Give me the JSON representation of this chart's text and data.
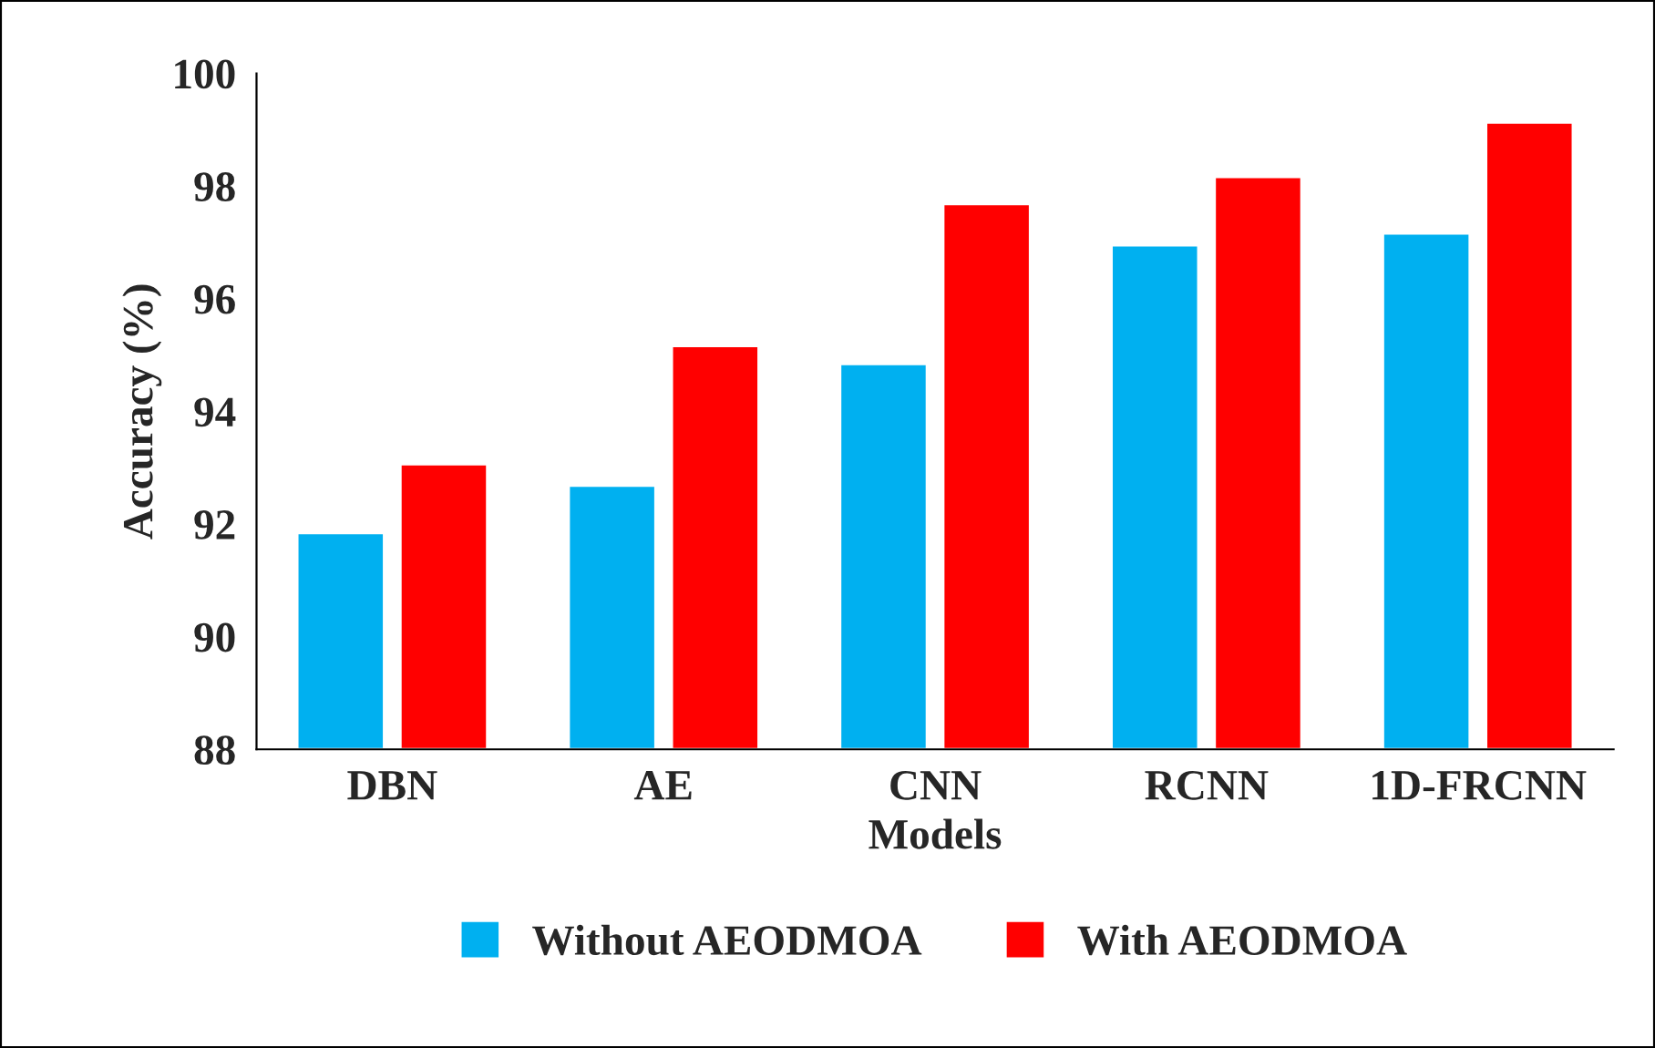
{
  "chart_data": {
    "type": "bar",
    "xlabel": "Models",
    "ylabel": "Accuracy (%)",
    "categories": [
      "DBN",
      "AE",
      "CNN",
      "RCNN",
      "1D-FRCNN"
    ],
    "series": [
      {
        "name": "Without AEODMOA",
        "color": "#00b0f0",
        "values": [
          91.84,
          92.68,
          94.84,
          96.95,
          97.16
        ]
      },
      {
        "name": "With AEODMOA",
        "color": "#ff0000",
        "values": [
          93.06,
          95.16,
          97.68,
          98.16,
          99.13
        ]
      }
    ],
    "ylim": [
      88,
      100
    ],
    "yticks": [
      88,
      90,
      92,
      94,
      96,
      98,
      100
    ],
    "grid": false,
    "legend": "bottom"
  }
}
